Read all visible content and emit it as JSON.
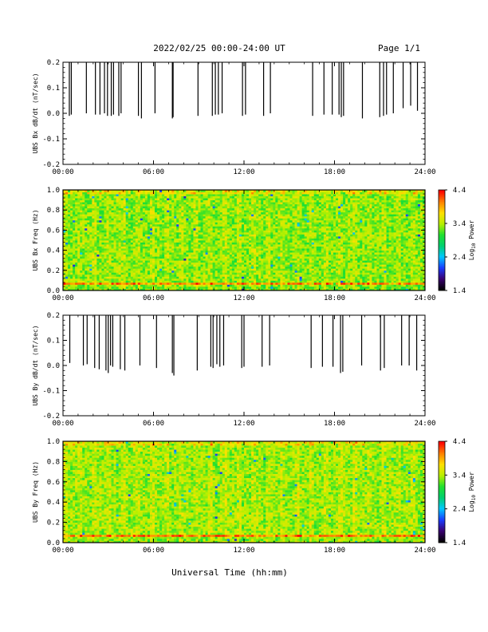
{
  "header": {
    "title": "2022/02/25  00:00-24:00 UT",
    "page": "Page 1/1"
  },
  "footer": {
    "xlabel": "Universal Time (hh:mm)"
  },
  "colors": {
    "background": "#ffffff",
    "axis": "#000000",
    "spectrum": [
      "#000000",
      "#3a0070",
      "#1a3cff",
      "#00c8ff",
      "#00d070",
      "#20e030",
      "#b8f000",
      "#ffe000",
      "#ff8000",
      "#ff0000"
    ]
  },
  "chart_data": [
    {
      "type": "bar",
      "id": "bx-dbdt",
      "ylabel": "UBS Bx dB/dt (nT/sec)",
      "xlabel": "",
      "x_ticks": [
        "00:00",
        "06:00",
        "12:00",
        "18:00",
        "24:00"
      ],
      "y_ticks": [
        "-0.2",
        "-0.1",
        "0.0",
        "0.1",
        "0.2"
      ],
      "xlim": [
        0,
        24
      ],
      "ylim": [
        -0.2,
        0.2
      ],
      "spikes": [
        {
          "t": 0.42,
          "min": -0.01
        },
        {
          "t": 0.55,
          "min": -0.005
        },
        {
          "t": 1.55,
          "min": 0.0
        },
        {
          "t": 2.15,
          "min": -0.005
        },
        {
          "t": 2.45,
          "min": -0.005
        },
        {
          "t": 2.75,
          "min": 0.0
        },
        {
          "t": 2.95,
          "min": -0.01
        },
        {
          "t": 3.2,
          "min": -0.01
        },
        {
          "t": 3.35,
          "min": -0.005
        },
        {
          "t": 3.7,
          "min": -0.01
        },
        {
          "t": 3.85,
          "min": 0.0
        },
        {
          "t": 5.0,
          "min": -0.01
        },
        {
          "t": 5.2,
          "min": -0.02
        },
        {
          "t": 6.1,
          "min": 0.0
        },
        {
          "t": 7.25,
          "min": -0.02
        },
        {
          "t": 7.3,
          "min": -0.015
        },
        {
          "t": 8.95,
          "min": -0.01
        },
        {
          "t": 9.9,
          "min": -0.01
        },
        {
          "t": 10.1,
          "min": -0.005
        },
        {
          "t": 10.3,
          "min": -0.005
        },
        {
          "t": 10.55,
          "min": 0.0
        },
        {
          "t": 11.9,
          "min": -0.01
        },
        {
          "t": 12.1,
          "min": -0.005
        },
        {
          "t": 13.3,
          "min": -0.01
        },
        {
          "t": 13.75,
          "min": 0.0
        },
        {
          "t": 16.55,
          "min": -0.01
        },
        {
          "t": 17.3,
          "min": -0.005
        },
        {
          "t": 17.85,
          "min": -0.005
        },
        {
          "t": 18.3,
          "min": -0.005
        },
        {
          "t": 18.45,
          "min": -0.015
        },
        {
          "t": 18.6,
          "min": -0.01
        },
        {
          "t": 19.85,
          "min": -0.02
        },
        {
          "t": 21.0,
          "min": -0.015
        },
        {
          "t": 21.25,
          "min": -0.01
        },
        {
          "t": 21.45,
          "min": -0.005
        },
        {
          "t": 21.9,
          "min": 0.0
        },
        {
          "t": 22.55,
          "min": 0.02
        },
        {
          "t": 23.05,
          "min": 0.03
        },
        {
          "t": 23.5,
          "min": 0.01
        }
      ]
    },
    {
      "type": "heatmap",
      "id": "bx-spectrogram",
      "ylabel": "UBS Bx Freq (Hz)",
      "x_ticks": [
        "00:00",
        "06:00",
        "12:00",
        "18:00",
        "24:00"
      ],
      "y_ticks": [
        "0.0",
        "0.2",
        "0.4",
        "0.6",
        "0.8",
        "1.0"
      ],
      "xlim": [
        0,
        24
      ],
      "ylim": [
        0,
        1
      ],
      "colorbar": {
        "label_prefix": "Log",
        "label_sub": "10",
        "label_suffix": " Power",
        "ticks": [
          "1.4",
          "2.4",
          "3.4",
          "4.4"
        ],
        "range": [
          1.4,
          4.4
        ]
      },
      "mean_level": 3.3,
      "line_freq_hz": 0.07
    },
    {
      "type": "bar",
      "id": "by-dbdt",
      "ylabel": "UBS By dB/dt (nT/sec)",
      "xlabel": "",
      "x_ticks": [
        "00:00",
        "06:00",
        "12:00",
        "18:00",
        "24:00"
      ],
      "y_ticks": [
        "-0.2",
        "-0.1",
        "0.0",
        "0.1",
        "0.2"
      ],
      "xlim": [
        0,
        24
      ],
      "ylim": [
        -0.2,
        0.2
      ],
      "spikes": [
        {
          "t": 0.45,
          "min": 0.01
        },
        {
          "t": 1.35,
          "min": 0.0
        },
        {
          "t": 1.6,
          "min": 0.005
        },
        {
          "t": 2.1,
          "min": -0.01
        },
        {
          "t": 2.4,
          "min": -0.015
        },
        {
          "t": 2.85,
          "min": -0.02
        },
        {
          "t": 3.0,
          "min": -0.03
        },
        {
          "t": 3.15,
          "min": 0.0
        },
        {
          "t": 3.3,
          "min": -0.005
        },
        {
          "t": 3.8,
          "min": -0.015
        },
        {
          "t": 4.1,
          "min": -0.02
        },
        {
          "t": 5.1,
          "min": 0.0
        },
        {
          "t": 6.2,
          "min": -0.01
        },
        {
          "t": 7.25,
          "min": -0.03
        },
        {
          "t": 7.35,
          "min": -0.04
        },
        {
          "t": 8.9,
          "min": -0.02
        },
        {
          "t": 9.8,
          "min": -0.005
        },
        {
          "t": 9.95,
          "min": -0.01
        },
        {
          "t": 10.2,
          "min": 0.005
        },
        {
          "t": 10.4,
          "min": -0.005
        },
        {
          "t": 10.65,
          "min": 0.0
        },
        {
          "t": 11.85,
          "min": -0.01
        },
        {
          "t": 12.0,
          "min": -0.005
        },
        {
          "t": 13.2,
          "min": -0.005
        },
        {
          "t": 13.7,
          "min": 0.0
        },
        {
          "t": 16.45,
          "min": -0.01
        },
        {
          "t": 17.2,
          "min": -0.005
        },
        {
          "t": 17.9,
          "min": -0.005
        },
        {
          "t": 18.4,
          "min": -0.03
        },
        {
          "t": 18.55,
          "min": -0.025
        },
        {
          "t": 19.8,
          "min": 0.0
        },
        {
          "t": 21.05,
          "min": -0.02
        },
        {
          "t": 21.3,
          "min": -0.01
        },
        {
          "t": 22.45,
          "min": 0.0
        },
        {
          "t": 22.95,
          "min": 0.0
        },
        {
          "t": 23.45,
          "min": -0.02
        }
      ]
    },
    {
      "type": "heatmap",
      "id": "by-spectrogram",
      "ylabel": "UBS By Freq (Hz)",
      "x_ticks": [
        "00:00",
        "06:00",
        "12:00",
        "18:00",
        "24:00"
      ],
      "y_ticks": [
        "0.0",
        "0.2",
        "0.4",
        "0.6",
        "0.8",
        "1.0"
      ],
      "xlim": [
        0,
        24
      ],
      "ylim": [
        0,
        1
      ],
      "colorbar": {
        "label_prefix": "Log",
        "label_sub": "10",
        "label_suffix": " Power",
        "ticks": [
          "1.4",
          "2.4",
          "3.4",
          "4.4"
        ],
        "range": [
          1.4,
          4.4
        ]
      },
      "mean_level": 3.35,
      "line_freq_hz": 0.07
    }
  ]
}
